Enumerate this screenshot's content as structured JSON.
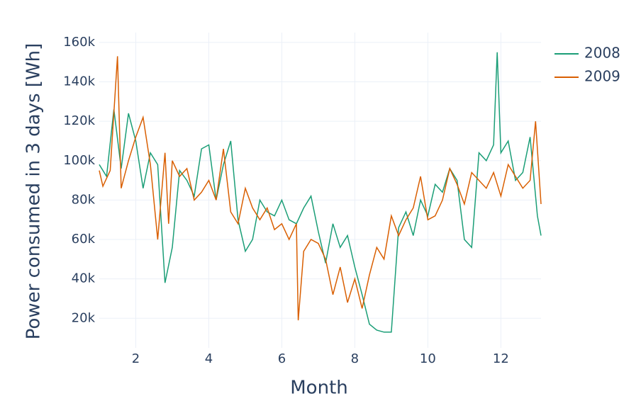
{
  "chart_data": {
    "type": "line",
    "xlabel": "Month",
    "ylabel": "Power consumed in 3 days  [Wh]",
    "xlim": [
      1,
      13.1
    ],
    "xticks": [
      2,
      4,
      6,
      8,
      10,
      12
    ],
    "ylim": [
      5000,
      165000
    ],
    "yticks": [
      {
        "value": 20000,
        "label": "20k"
      },
      {
        "value": 40000,
        "label": "40k"
      },
      {
        "value": 60000,
        "label": "60k"
      },
      {
        "value": 80000,
        "label": "80k"
      },
      {
        "value": 100000,
        "label": "100k"
      },
      {
        "value": 120000,
        "label": "120k"
      },
      {
        "value": 140000,
        "label": "140k"
      },
      {
        "value": 160000,
        "label": "160k"
      }
    ],
    "grid": true,
    "legend": "top-right",
    "series": [
      {
        "name": "2008",
        "color": "#1b9e77",
        "x": [
          1.0,
          1.2,
          1.4,
          1.6,
          1.8,
          2.0,
          2.2,
          2.4,
          2.6,
          2.8,
          3.0,
          3.2,
          3.4,
          3.6,
          3.8,
          4.0,
          4.2,
          4.4,
          4.6,
          4.8,
          5.0,
          5.2,
          5.4,
          5.6,
          5.8,
          6.0,
          6.2,
          6.4,
          6.6,
          6.8,
          7.0,
          7.2,
          7.4,
          7.6,
          7.8,
          8.0,
          8.2,
          8.4,
          8.6,
          8.8,
          9.0,
          9.2,
          9.4,
          9.6,
          9.8,
          10.0,
          10.2,
          10.4,
          10.6,
          10.8,
          11.0,
          11.2,
          11.4,
          11.6,
          11.8,
          11.9,
          12.0,
          12.2,
          12.4,
          12.6,
          12.8,
          13.0,
          13.1
        ],
        "values": [
          98000,
          92000,
          126000,
          96000,
          124000,
          110000,
          86000,
          104000,
          98000,
          38000,
          56000,
          95000,
          90000,
          82000,
          106000,
          108000,
          80000,
          98000,
          110000,
          70000,
          54000,
          60000,
          80000,
          74000,
          72000,
          80000,
          70000,
          68000,
          76000,
          82000,
          64000,
          48000,
          68000,
          56000,
          62000,
          46000,
          32000,
          17000,
          14000,
          13000,
          13000,
          66000,
          74000,
          62000,
          80000,
          72000,
          88000,
          84000,
          96000,
          90000,
          60000,
          56000,
          104000,
          100000,
          108000,
          155000,
          104000,
          110000,
          90000,
          94000,
          112000,
          72000,
          62000
        ]
      },
      {
        "name": "2009",
        "color": "#d95f02",
        "x": [
          1.0,
          1.1,
          1.3,
          1.5,
          1.6,
          1.8,
          2.0,
          2.2,
          2.4,
          2.6,
          2.8,
          2.9,
          3.0,
          3.2,
          3.4,
          3.6,
          3.8,
          4.0,
          4.2,
          4.4,
          4.6,
          4.8,
          5.0,
          5.2,
          5.4,
          5.6,
          5.8,
          6.0,
          6.2,
          6.4,
          6.45,
          6.6,
          6.8,
          7.0,
          7.2,
          7.4,
          7.6,
          7.8,
          8.0,
          8.2,
          8.4,
          8.6,
          8.8,
          9.0,
          9.2,
          9.4,
          9.6,
          9.8,
          10.0,
          10.2,
          10.4,
          10.6,
          10.8,
          11.0,
          11.2,
          11.4,
          11.6,
          11.8,
          12.0,
          12.2,
          12.4,
          12.6,
          12.8,
          12.95,
          13.1
        ],
        "values": [
          95000,
          87000,
          95000,
          153000,
          86000,
          100000,
          112000,
          122000,
          98000,
          60000,
          104000,
          68000,
          100000,
          92000,
          96000,
          80000,
          84000,
          90000,
          80000,
          106000,
          74000,
          68000,
          86000,
          76000,
          70000,
          76000,
          65000,
          68000,
          60000,
          68000,
          19000,
          54000,
          60000,
          58000,
          50000,
          32000,
          46000,
          28000,
          40000,
          25000,
          42000,
          56000,
          50000,
          72000,
          62000,
          70000,
          76000,
          92000,
          70000,
          72000,
          80000,
          96000,
          88000,
          78000,
          94000,
          90000,
          86000,
          94000,
          82000,
          98000,
          92000,
          86000,
          90000,
          120000,
          78000
        ]
      }
    ]
  }
}
